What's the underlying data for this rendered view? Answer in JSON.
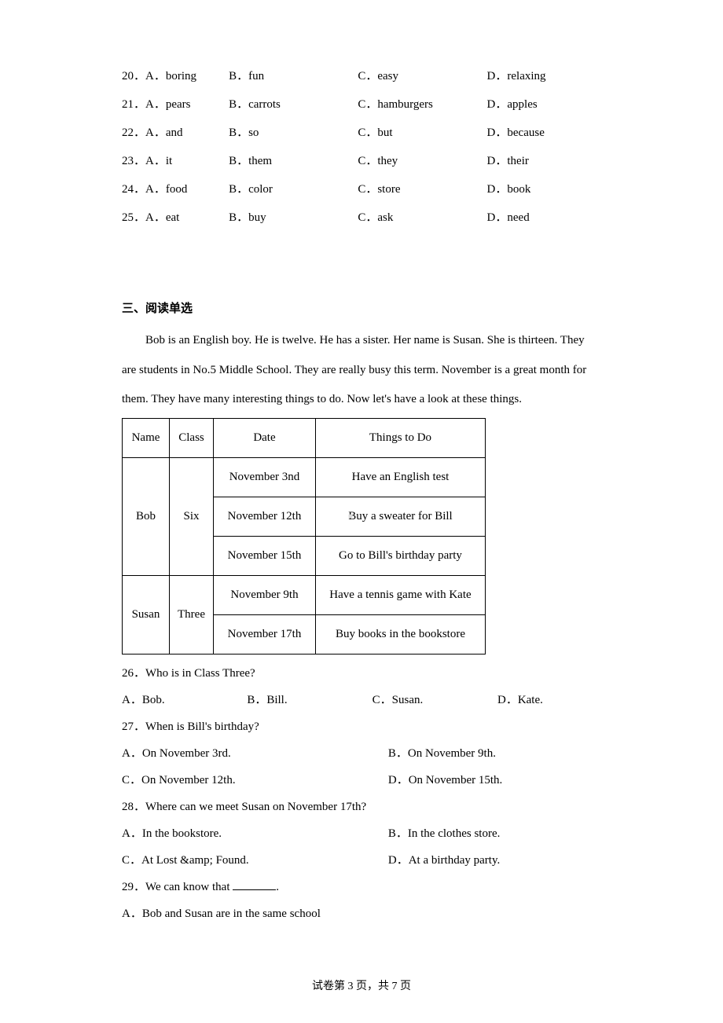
{
  "mcq": [
    {
      "num": "20．A．boring",
      "b": "B．fun",
      "c": "C．easy",
      "d": "D．relaxing"
    },
    {
      "num": "21．A．pears",
      "b": "B．carrots",
      "c": "C．hamburgers",
      "d": "D．apples"
    },
    {
      "num": "22．A．and",
      "b": "B．so",
      "c": "C．but",
      "d": "D．because"
    },
    {
      "num": "23．A．it",
      "b": "B．them",
      "c": "C．they",
      "d": "D．their"
    },
    {
      "num": "24．A．food",
      "b": "B．color",
      "c": "C．store",
      "d": "D．book"
    },
    {
      "num": "25．A．eat",
      "b": "B．buy",
      "c": "C．ask",
      "d": "D．need"
    }
  ],
  "section3": {
    "header": "三、阅读单选",
    "passage": "Bob is an English boy. He is twelve. He has a sister. Her name is Susan. She is thirteen. They are students in No.5 Middle School. They are really busy this term. November is a great month for them. They have many interesting things to do. Now let's have a look at these things."
  },
  "table": {
    "headers": {
      "name": "Name",
      "class": "Class",
      "date": "Date",
      "things": "Things to Do"
    },
    "bob": {
      "name": "Bob",
      "class": "Six",
      "rows": [
        {
          "date": "November 3nd",
          "thing": "Have an English test"
        },
        {
          "date": "November 12th",
          "thing": "Buy a sweater for Bill"
        },
        {
          "date": "November 15th",
          "thing": "Go to Bill's birthday party"
        }
      ]
    },
    "susan": {
      "name": "Susan",
      "class": "Three",
      "rows": [
        {
          "date": "November 9th",
          "thing": "Have a tennis game with Kate"
        },
        {
          "date": "November 17th",
          "thing": "Buy books in the bookstore"
        }
      ]
    }
  },
  "questions": {
    "q26": {
      "text": "26．Who is in Class Three?",
      "a": "A．Bob.",
      "b": "B．Bill.",
      "c": "C．Susan.",
      "d": "D．Kate."
    },
    "q27": {
      "text": "27．When is Bill's birthday?",
      "a": "A．On November 3rd.",
      "b": "B．On November 9th.",
      "c": "C．On November 12th.",
      "d": "D．On November 15th."
    },
    "q28": {
      "text": "28．Where can we meet Susan on November 17th?",
      "a": "A．In the bookstore.",
      "b": "B．In the clothes store.",
      "c": "C．At Lost &amp; Found.",
      "d": "D．At a birthday party."
    },
    "q29": {
      "text_before": "29．We can know that ",
      "text_after": ".",
      "a": "A．Bob and Susan are in the same school"
    }
  },
  "watermark": "■",
  "footer": "试卷第 3 页，共 7 页"
}
